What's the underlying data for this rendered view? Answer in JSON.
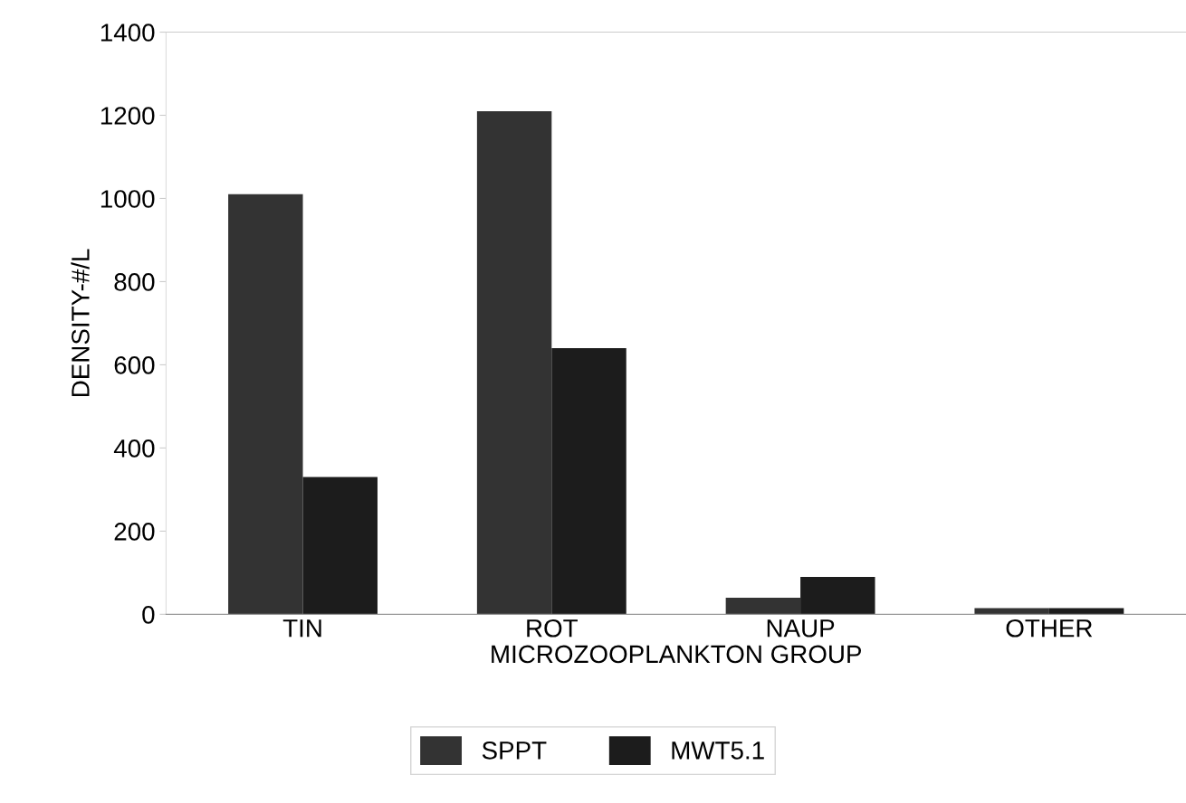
{
  "chart_data": {
    "type": "bar",
    "xlabel": "MICROZOOPLANKTON GROUP",
    "ylabel": "DENSITY-#/L",
    "categories": [
      "TIN",
      "ROT",
      "NAUP",
      "OTHER"
    ],
    "series": [
      {
        "name": "SPPT",
        "color": "#333333",
        "values": [
          1010,
          1210,
          40,
          15
        ]
      },
      {
        "name": "MWT5.1",
        "color": "#1c1c1c",
        "values": [
          330,
          640,
          90,
          15
        ]
      }
    ],
    "ylim": [
      0,
      1400
    ],
    "yticks": [
      0,
      200,
      400,
      600,
      800,
      1000,
      1200,
      1400
    ],
    "grid": false,
    "legend": "bottom"
  }
}
